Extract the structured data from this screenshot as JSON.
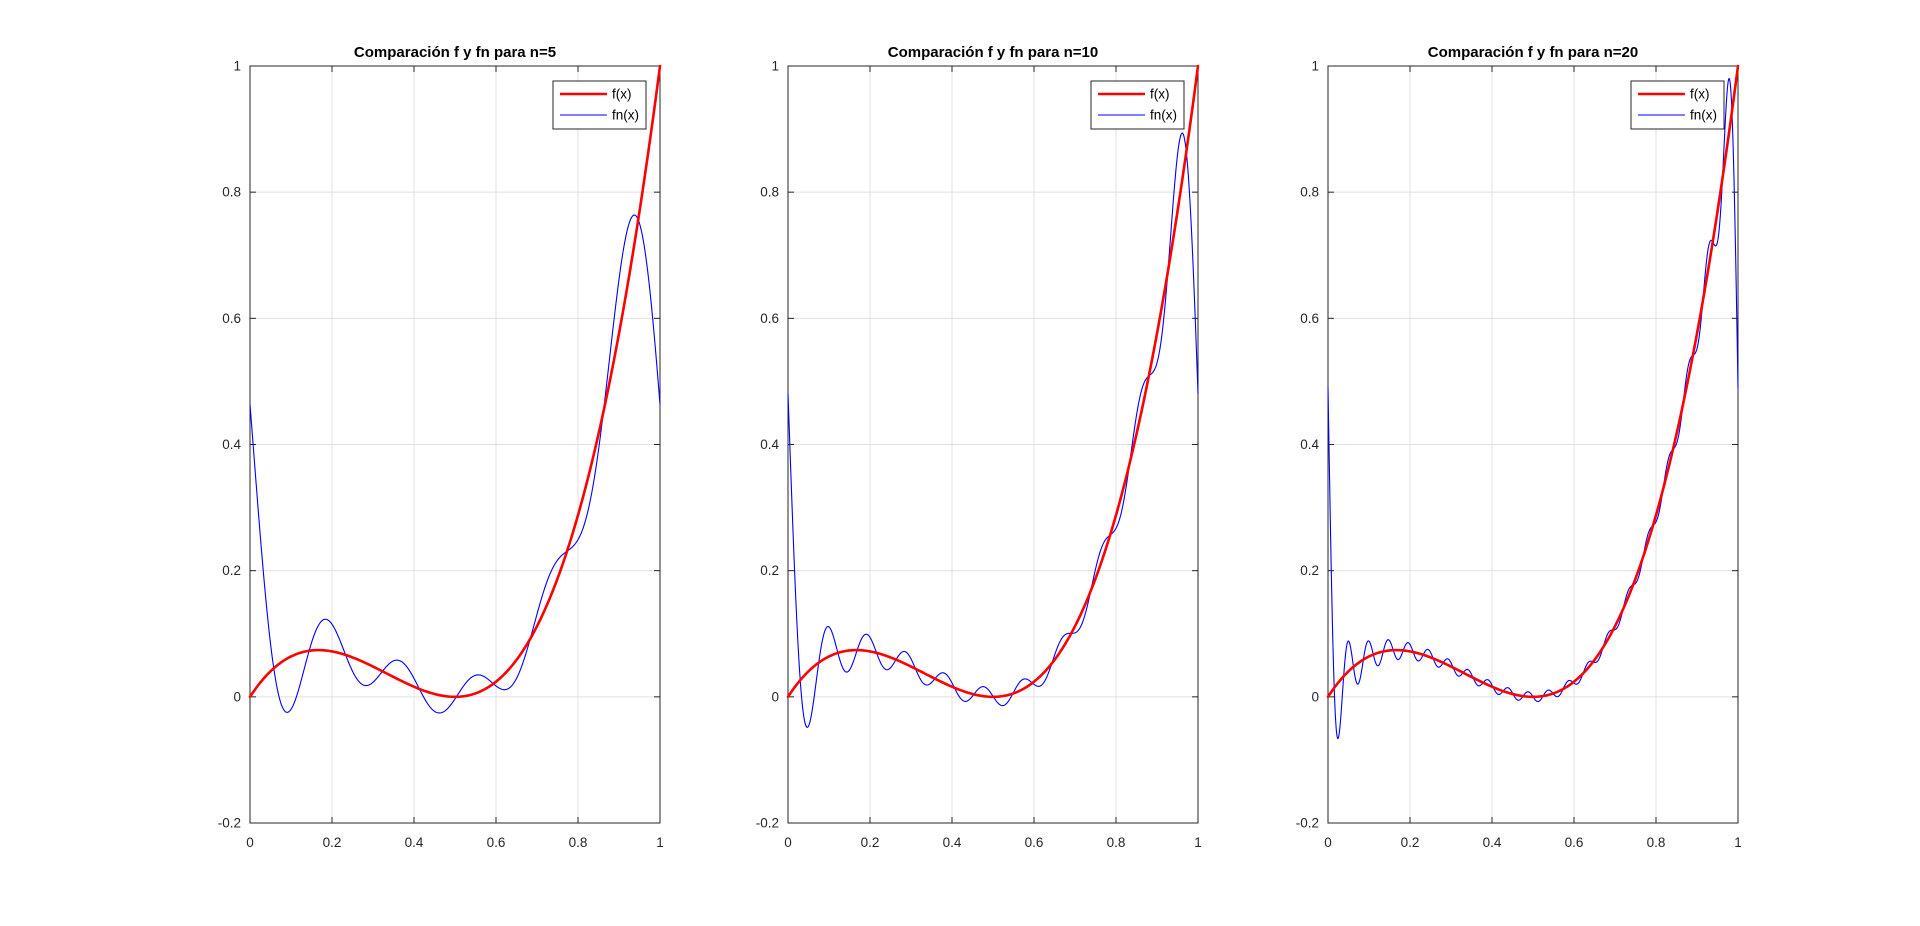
{
  "figure": {
    "background": "#ffffff"
  },
  "chart_data": {
    "type": "line",
    "subplots": [
      {
        "title": "Comparación f y fn para n=5",
        "n": 5,
        "fn_value_at_edges": 0.463,
        "fn_gibbs_peak": {
          "x": 0.93,
          "y": 0.76
        }
      },
      {
        "title": "Comparación f y fn para n=10",
        "n": 10,
        "fn_value_at_edges": 0.481,
        "fn_gibbs_peak": {
          "x": 0.955,
          "y": 0.89
        }
      },
      {
        "title": "Comparación f y fn para n=20",
        "n": 20,
        "fn_value_at_edges": 0.49,
        "fn_gibbs_peak": {
          "x": 0.976,
          "y": 0.97
        }
      }
    ],
    "xlim": [
      0,
      1
    ],
    "ylim": [
      -0.2,
      1
    ],
    "xticks": [
      0,
      0.2,
      0.4,
      0.6,
      0.8,
      1
    ],
    "xtick_labels": [
      "0",
      "0.2",
      "0.4",
      "0.6",
      "0.8",
      "1"
    ],
    "yticks": [
      -0.2,
      0,
      0.2,
      0.4,
      0.6,
      0.8,
      1
    ],
    "ytick_labels": [
      "-0.2",
      "0",
      "0.2",
      "0.4",
      "0.6",
      "0.8",
      "1"
    ],
    "grid": true,
    "colors": {
      "axis": "#262626",
      "grid": "#e0e0e0",
      "tick_label": "#262626",
      "title": "#000000",
      "legend_border": "#262626",
      "legend_background": "#ffffff"
    },
    "legend": {
      "position": "top-right",
      "entries": [
        {
          "label": "f(x)",
          "color": "#ff0000",
          "line_width": 2.6
        },
        {
          "label": "fn(x)",
          "color": "#0000ff",
          "line_width": 1.1
        }
      ]
    },
    "series": {
      "f": {
        "label": "f(x)",
        "color": "#ff0000",
        "line_width": 2.6,
        "poly_coeffs_ascending": [
          0,
          1,
          -4,
          4
        ],
        "points": [
          [
            0,
            0
          ],
          [
            0.05,
            0.0405
          ],
          [
            0.1,
            0.064
          ],
          [
            0.15,
            0.0735
          ],
          [
            0.2,
            0.072
          ],
          [
            0.25,
            0.0625
          ],
          [
            0.3,
            0.048
          ],
          [
            0.35,
            0.0315
          ],
          [
            0.4,
            0.016
          ],
          [
            0.45,
            0.0045
          ],
          [
            0.5,
            0
          ],
          [
            0.55,
            0.0055
          ],
          [
            0.6,
            0.024
          ],
          [
            0.65,
            0.0585
          ],
          [
            0.7,
            0.112
          ],
          [
            0.75,
            0.1875
          ],
          [
            0.8,
            0.288
          ],
          [
            0.85,
            0.4165
          ],
          [
            0.9,
            0.576
          ],
          [
            0.95,
            0.7695
          ],
          [
            1,
            1
          ]
        ]
      },
      "fn": {
        "label": "fn(x)",
        "color": "#0000ff",
        "line_width": 1.1,
        "fourier": {
          "a0": 0.16666667,
          "cos": [
            0.20264237,
            0.05066059,
            0.02251582,
            0.01266515,
            0.00810569,
            0.00562895,
            0.00413556,
            0.00316629,
            0.00250176,
            0.00202642,
            0.00167473,
            0.00140724,
            0.00119907,
            0.00103389,
            0.00090063,
            0.00079157,
            0.00070118,
            0.00062544,
            0.00056134,
            0.00050661
          ],
          "sin": [
            -0.1247846,
            -0.13496428,
            -0.0989357,
            -0.07655364,
            -0.06211378,
            -0.0521557,
            -0.04490863,
            -0.03941076,
            -0.0351023,
            -0.03163746,
            -0.02879186,
            -0.02641383,
            -0.02439729,
            -0.02266589,
            -0.02116332,
            -0.01984712,
            -0.01868472,
            -0.0176507,
            -0.01672494,
            -0.0158913
          ]
        }
      }
    }
  }
}
